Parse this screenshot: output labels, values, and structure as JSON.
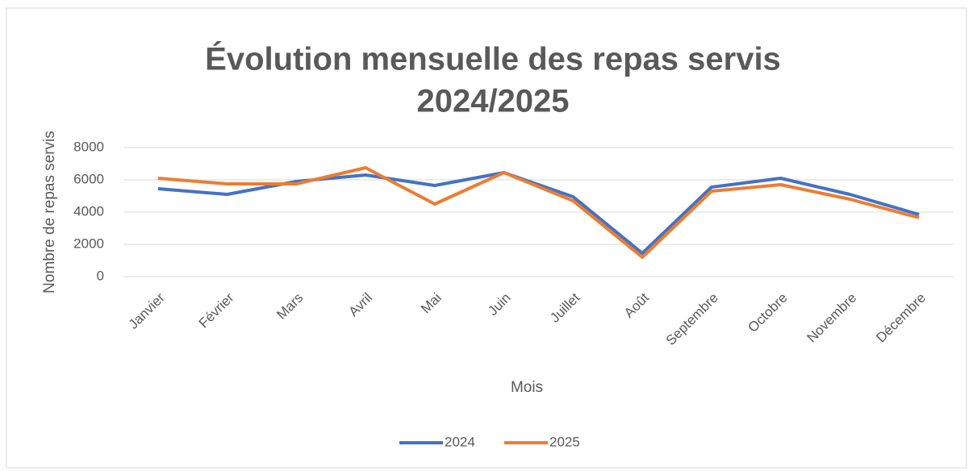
{
  "chart_data": {
    "type": "line",
    "title": [
      "Évolution mensuelle des repas servis",
      "2024/2025"
    ],
    "x_label": "Mois",
    "y_label": "Nombre de repas servis",
    "categories": [
      "Janvier",
      "Février",
      "Mars",
      "Avril",
      "Mai",
      "Juin",
      "Juillet",
      "Août",
      "Septembre",
      "Octobre",
      "Novembre",
      "Décembre"
    ],
    "series": [
      {
        "name": "2024",
        "color": "#4472c4",
        "values": [
          5450,
          5100,
          5900,
          6300,
          5650,
          6450,
          4950,
          1450,
          5550,
          6100,
          5100,
          3850
        ]
      },
      {
        "name": "2025",
        "color": "#ed7d31",
        "values": [
          6100,
          5750,
          5750,
          6750,
          4500,
          6450,
          4700,
          1200,
          5300,
          5700,
          4800,
          3650
        ]
      }
    ],
    "ylim": [
      0,
      8000
    ],
    "yticks": [
      0,
      2000,
      4000,
      6000,
      8000
    ],
    "grid": true,
    "legend": "bottom"
  }
}
